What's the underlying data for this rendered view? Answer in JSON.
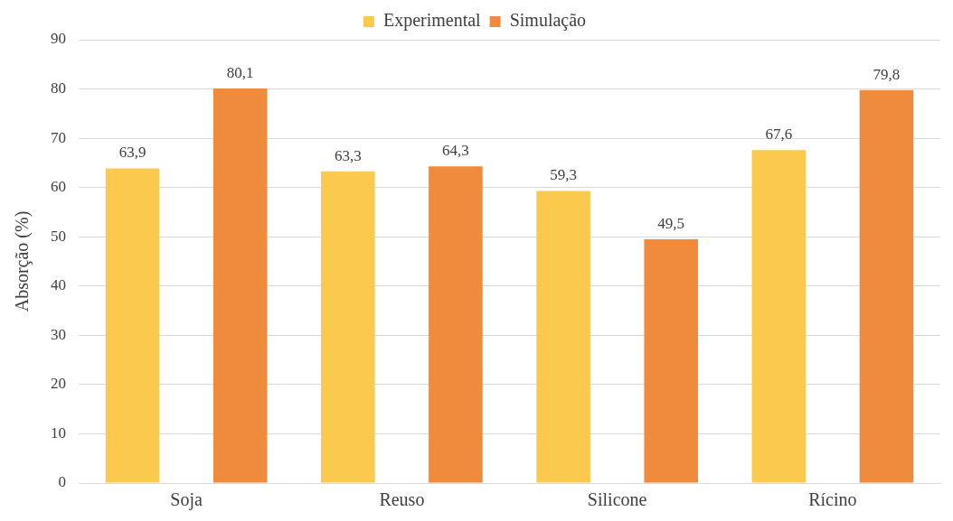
{
  "chart_data": {
    "type": "bar",
    "ylabel": "Absorção (%)",
    "categories": [
      "Soja",
      "Reuso",
      "Silicone",
      "Rícino"
    ],
    "series": [
      {
        "name": "Experimental",
        "color": "#fbc94e",
        "values": [
          63.9,
          63.3,
          59.3,
          67.6
        ],
        "value_labels": [
          "63,9",
          "63,3",
          "59,3",
          "67,6"
        ]
      },
      {
        "name": "Simulação",
        "color": "#f08a3c",
        "values": [
          80.1,
          64.3,
          49.5,
          79.8
        ],
        "value_labels": [
          "80,1",
          "64,3",
          "49,5",
          "79,8"
        ]
      }
    ],
    "ylim": [
      0,
      90
    ],
    "yticks": [
      0,
      10,
      20,
      30,
      40,
      50,
      60,
      70,
      80,
      90
    ],
    "grid": "y",
    "legend": "top"
  }
}
